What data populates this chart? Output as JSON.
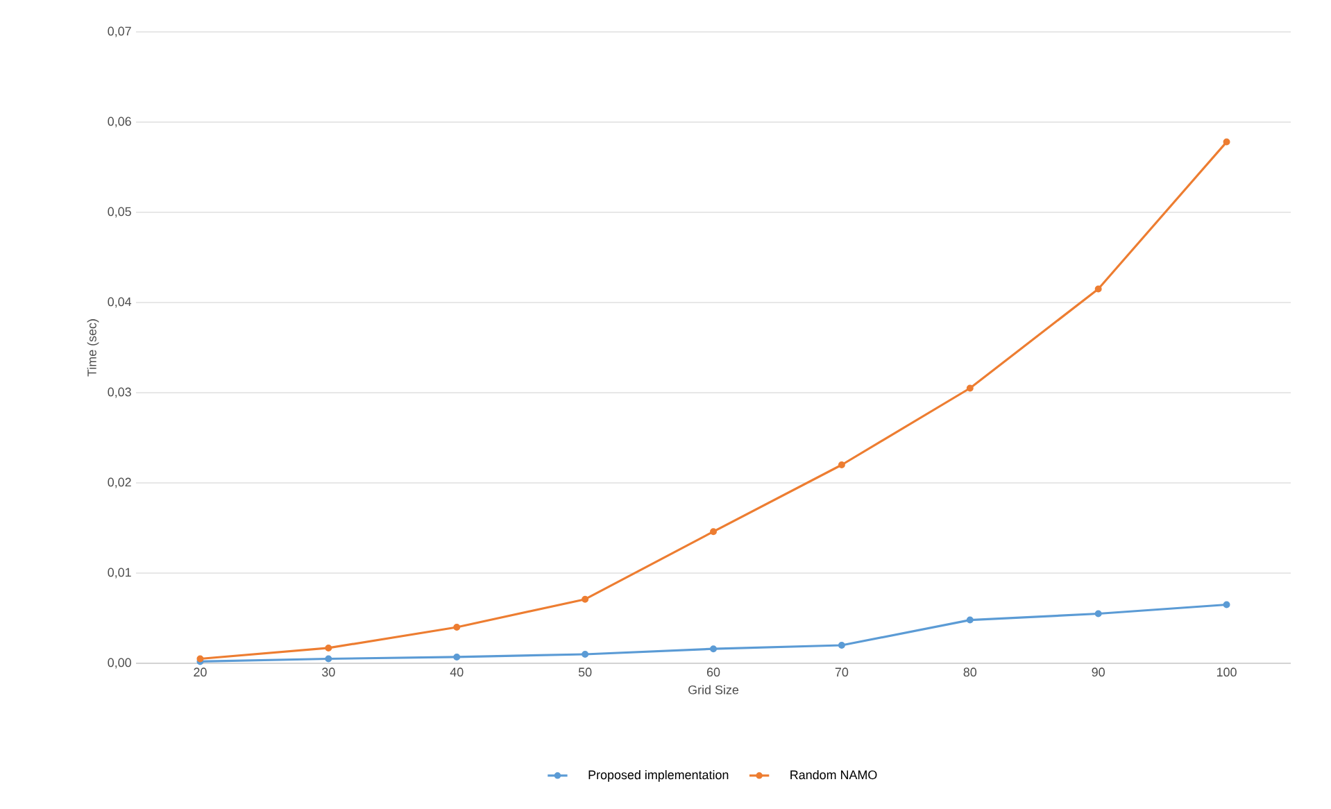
{
  "chart_data": {
    "type": "line",
    "xlabel": "Grid Size",
    "ylabel": "Time (sec)",
    "categories": [
      "20",
      "30",
      "40",
      "50",
      "60",
      "70",
      "80",
      "90",
      "100"
    ],
    "series": [
      {
        "name": "Proposed implementation",
        "color": "#5b9bd5",
        "values": [
          0.0002,
          0.0005,
          0.0007,
          0.001,
          0.0016,
          0.002,
          0.0048,
          0.0055,
          0.0065
        ]
      },
      {
        "name": "Random NAMO",
        "color": "#ed7d31",
        "values": [
          0.0005,
          0.0017,
          0.004,
          0.0071,
          0.0146,
          0.022,
          0.0305,
          0.0415,
          0.0578
        ]
      }
    ],
    "ylim": [
      0,
      0.07
    ],
    "yticks": [
      {
        "value": 0,
        "label": "0,00"
      },
      {
        "value": 0.01,
        "label": "0,01"
      },
      {
        "value": 0.02,
        "label": "0,02"
      },
      {
        "value": 0.03,
        "label": "0,03"
      },
      {
        "value": 0.04,
        "label": "0,04"
      },
      {
        "value": 0.05,
        "label": "0,05"
      },
      {
        "value": 0.06,
        "label": "0,06"
      },
      {
        "value": 0.07,
        "label": "0,07"
      }
    ],
    "grid": "y",
    "legend": "bottom",
    "marker": "circle",
    "line_style": "solid"
  }
}
